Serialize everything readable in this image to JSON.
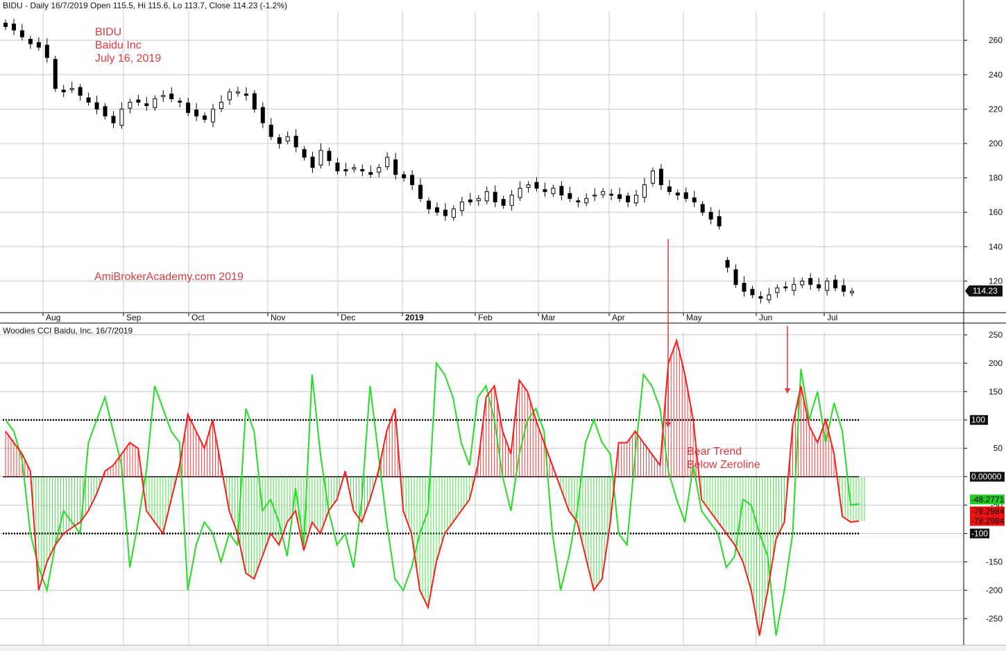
{
  "header_price": "BIDU - Daily 16/7/2019 Open 115.5, Hi 115.6, Lo 113.7, Close 114.23 (-1.2%)",
  "header_cci": "Woodies CCI  Baidu, Inc. 16/7/2019",
  "annotations": {
    "ticker": "BIDU",
    "company": "Baidu Inc",
    "date": "July 16, 2019",
    "site": "AmiBrokerAcademy.com   2019",
    "bear1": "Bear Trend",
    "bear2": "Below Zeroline"
  },
  "colors": {
    "candle": "#000000",
    "cci_slow": "#ff1a1a",
    "turbo": "#22dd22",
    "annotation": "#e0393e",
    "grid": "#c8c8c8"
  },
  "chart_data": [
    {
      "type": "candlestick",
      "title": "BIDU - Daily 16/7/2019",
      "ohlc_last": {
        "open": 115.5,
        "high": 115.6,
        "low": 113.7,
        "close": 114.23
      },
      "last_price_label": "114.23",
      "x_ticks": [
        "Aug",
        "Sep",
        "Oct",
        "Nov",
        "Dec",
        "2019",
        "Feb",
        "Mar",
        "Apr",
        "May",
        "Jun",
        "Jul"
      ],
      "y_ticks": [
        120,
        140,
        160,
        180,
        200,
        220,
        240,
        260
      ],
      "ylim": [
        102,
        277
      ],
      "closes_approx": [
        268,
        266,
        262,
        258,
        256,
        250,
        232,
        230,
        232,
        228,
        224,
        220,
        216,
        212,
        220,
        224,
        224,
        222,
        226,
        228,
        226,
        224,
        218,
        216,
        214,
        220,
        224,
        230,
        230,
        228,
        220,
        212,
        204,
        200,
        204,
        198,
        192,
        186,
        196,
        190,
        184,
        184,
        186,
        184,
        182,
        186,
        192,
        182,
        180,
        176,
        168,
        162,
        160,
        158,
        162,
        166,
        166,
        168,
        172,
        166,
        164,
        170,
        174,
        176,
        174,
        172,
        174,
        170,
        168,
        166,
        168,
        170,
        172,
        170,
        168,
        166,
        170,
        176,
        184,
        176,
        172,
        170,
        168,
        166,
        160,
        156,
        152,
        128,
        118,
        114,
        112,
        110,
        112,
        116,
        116,
        118,
        120,
        118,
        116,
        120,
        116,
        114,
        114
      ]
    },
    {
      "type": "line",
      "title": "Woodies CCI  Baidu, Inc. 16/7/2019",
      "y_ticks": [
        -250,
        -200,
        -150,
        -100,
        -50,
        0,
        50,
        100,
        150,
        200,
        250
      ],
      "ylim": [
        -296,
        256
      ],
      "reference_lines": [
        100,
        0,
        -100
      ],
      "series": [
        {
          "role": "cci",
          "color": "#ff1a1a",
          "values": [
            80,
            60,
            40,
            10,
            -200,
            -150,
            -120,
            -100,
            -90,
            -80,
            -60,
            -30,
            10,
            20,
            40,
            60,
            50,
            -60,
            -80,
            -100,
            -40,
            20,
            110,
            80,
            50,
            100,
            20,
            -60,
            -100,
            -170,
            -180,
            -140,
            -100,
            -120,
            -80,
            -60,
            -130,
            -80,
            -100,
            -60,
            -40,
            10,
            -60,
            -80,
            -40,
            10,
            80,
            120,
            -60,
            -100,
            -200,
            -230,
            -150,
            -100,
            -80,
            -60,
            -40,
            20,
            140,
            160,
            80,
            40,
            170,
            150,
            100,
            60,
            20,
            -20,
            -60,
            -80,
            -140,
            -200,
            -180,
            -80,
            60,
            60,
            80,
            60,
            40,
            20,
            200,
            240,
            180,
            100,
            -40,
            -60,
            -80,
            -100,
            -120,
            -150,
            -200,
            -280,
            -200,
            -110,
            -80,
            90,
            160,
            90,
            60,
            100,
            40,
            -70,
            -80,
            -78
          ]
        },
        {
          "role": "turbo_cci",
          "color": "#22dd22",
          "values": [
            100,
            80,
            30,
            -100,
            -160,
            -200,
            -120,
            -60,
            -80,
            -100,
            60,
            100,
            140,
            80,
            20,
            -160,
            -80,
            10,
            160,
            120,
            80,
            60,
            -200,
            -120,
            -80,
            -100,
            -150,
            -100,
            -120,
            120,
            80,
            -60,
            -40,
            -80,
            -140,
            -20,
            -120,
            180,
            40,
            -60,
            -120,
            -100,
            -160,
            -40,
            160,
            40,
            -80,
            -180,
            -200,
            -160,
            -100,
            -60,
            200,
            180,
            140,
            60,
            20,
            140,
            160,
            100,
            0,
            -60,
            40,
            100,
            120,
            80,
            -100,
            -200,
            -140,
            -60,
            60,
            100,
            60,
            40,
            -100,
            -120,
            40,
            180,
            160,
            120,
            10,
            -40,
            -80,
            20,
            -60,
            -80,
            -100,
            -160,
            -140,
            -40,
            -50,
            -100,
            -140,
            -280,
            -200,
            -100,
            190,
            100,
            150,
            60,
            130,
            80,
            -50,
            -48
          ]
        }
      ],
      "last_labels": {
        "turbo": "-48.2771",
        "cci": "-78.2984",
        "zero": "0.00000",
        "upper": "100",
        "lower": "-100"
      }
    }
  ]
}
